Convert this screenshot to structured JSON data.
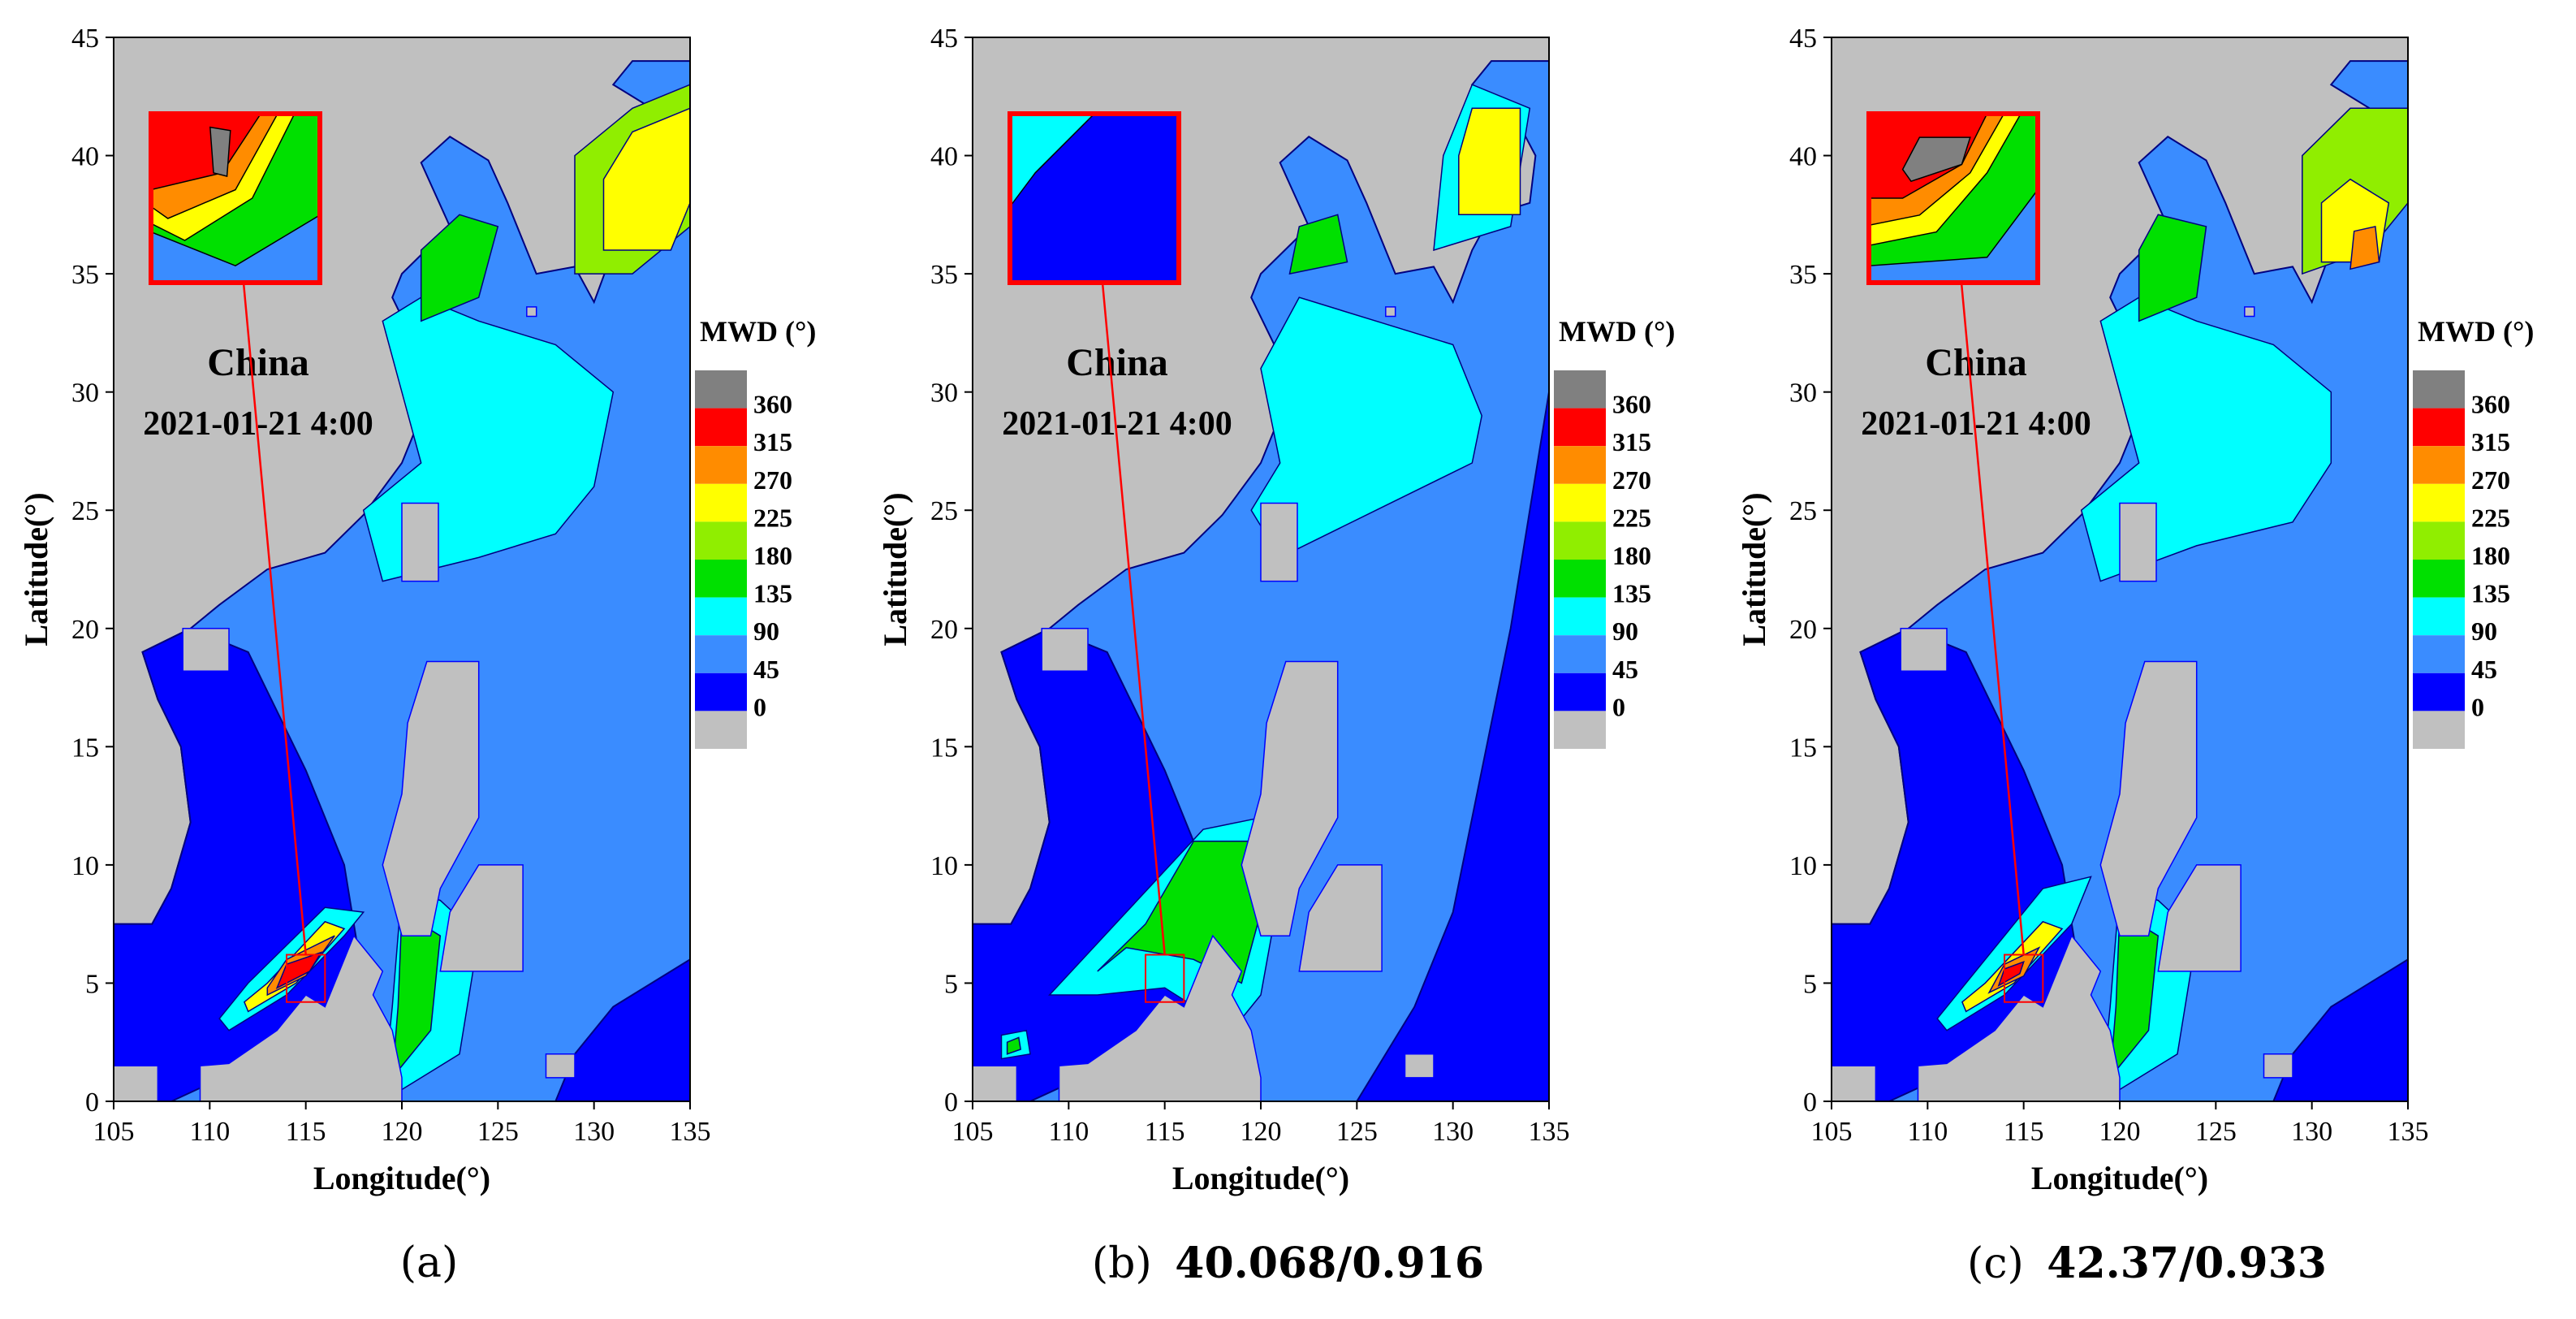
{
  "figure": {
    "panels": [
      {
        "id": "a",
        "caption_letter": "(a)",
        "metrics": "",
        "country_label": "China",
        "timestamp": "2021-01-21 4:00",
        "colorbar_title": "MWD (°)"
      },
      {
        "id": "b",
        "caption_letter": "(b)",
        "metrics": "40.068/0.916",
        "country_label": "China",
        "timestamp": "2021-01-21 4:00",
        "colorbar_title": "MWD (°)"
      },
      {
        "id": "c",
        "caption_letter": "(c)",
        "metrics": "42.37/0.933",
        "country_label": "China",
        "timestamp": "2021-01-21 4:00",
        "colorbar_title": "MWD (°)"
      }
    ]
  },
  "chart_data": [
    {
      "type": "heatmap",
      "variable": "MWD (°)",
      "xlabel": "Longitude(°)",
      "ylabel": "Latitude(°)",
      "xlim": [
        105,
        135
      ],
      "ylim": [
        0,
        45
      ],
      "xticks": [
        105,
        110,
        115,
        120,
        125,
        130,
        135
      ],
      "yticks": [
        0,
        5,
        10,
        15,
        20,
        25,
        30,
        35,
        40,
        45
      ],
      "colorbar": {
        "levels": [
          0,
          45,
          90,
          135,
          180,
          225,
          270,
          315,
          360
        ],
        "colors": [
          "#0000ff",
          "#3a8cff",
          "#00ffff",
          "#00e000",
          "#90ee00",
          "#ffff00",
          "#ff8c00",
          "#ff0000",
          "#808080"
        ]
      },
      "zoom_box": {
        "lon": [
          114,
          116
        ],
        "lat": [
          4.2,
          6.2
        ]
      }
    },
    {
      "type": "heatmap",
      "variable": "MWD (°)",
      "xlabel": "Longitude(°)",
      "ylabel": "Latitude(°)",
      "xlim": [
        105,
        135
      ],
      "ylim": [
        0,
        45
      ],
      "xticks": [
        105,
        110,
        115,
        120,
        125,
        130,
        135
      ],
      "yticks": [
        0,
        5,
        10,
        15,
        20,
        25,
        30,
        35,
        40,
        45
      ],
      "colorbar": {
        "levels": [
          0,
          45,
          90,
          135,
          180,
          225,
          270,
          315,
          360
        ],
        "colors": [
          "#0000ff",
          "#3a8cff",
          "#00ffff",
          "#00e000",
          "#90ee00",
          "#ffff00",
          "#ff8c00",
          "#ff0000",
          "#808080"
        ]
      },
      "zoom_box": {
        "lon": [
          114,
          116
        ],
        "lat": [
          4.2,
          6.2
        ]
      },
      "rmse": 40.068,
      "r": 0.916
    },
    {
      "type": "heatmap",
      "variable": "MWD (°)",
      "xlabel": "Longitude(°)",
      "ylabel": "Latitude(°)",
      "xlim": [
        105,
        135
      ],
      "ylim": [
        0,
        45
      ],
      "xticks": [
        105,
        110,
        115,
        120,
        125,
        130,
        135
      ],
      "yticks": [
        0,
        5,
        10,
        15,
        20,
        25,
        30,
        35,
        40,
        45
      ],
      "colorbar": {
        "levels": [
          0,
          45,
          90,
          135,
          180,
          225,
          270,
          315,
          360
        ],
        "colors": [
          "#0000ff",
          "#3a8cff",
          "#00ffff",
          "#00e000",
          "#90ee00",
          "#ffff00",
          "#ff8c00",
          "#ff0000",
          "#808080"
        ]
      },
      "zoom_box": {
        "lon": [
          114,
          116
        ],
        "lat": [
          4.2,
          6.2
        ]
      },
      "rmse": 42.37,
      "r": 0.933
    }
  ]
}
